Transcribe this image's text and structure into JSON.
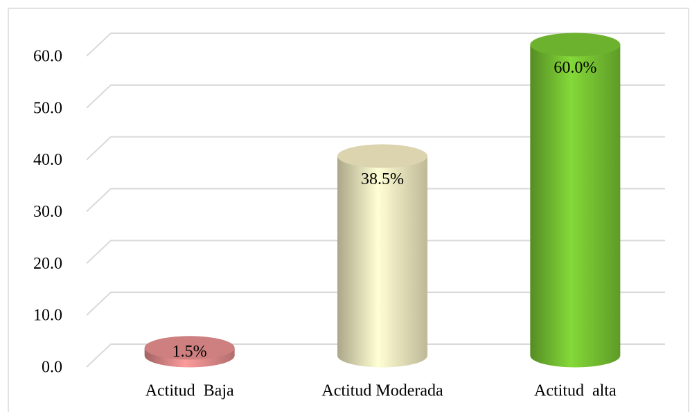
{
  "chart_data": {
    "type": "bar3d",
    "categories": [
      "Actitud  Baja",
      "Actitud Moderada",
      "Actitud  alta"
    ],
    "values": [
      1.5,
      38.5,
      60.0
    ],
    "value_labels": [
      "1.5%",
      "38.5%",
      "60.0%"
    ],
    "colors": [
      "#e08a8a",
      "#eee6bd",
      "#76c232"
    ],
    "ylim": [
      0,
      60
    ],
    "yticks": [
      {
        "value": 0,
        "label": "0.0"
      },
      {
        "value": 10,
        "label": "10.0"
      },
      {
        "value": 20,
        "label": "20.0"
      },
      {
        "value": 30,
        "label": "30.0"
      },
      {
        "value": 40,
        "label": "40.0"
      },
      {
        "value": 50,
        "label": "50.0"
      },
      {
        "value": 60,
        "label": "60.0"
      }
    ],
    "grid": true
  }
}
